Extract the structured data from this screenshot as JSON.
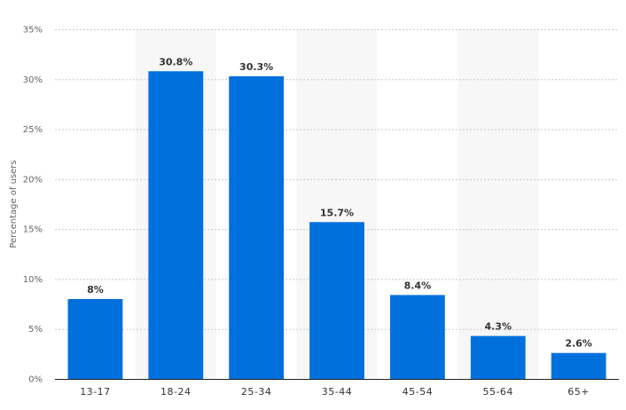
{
  "chart_data": {
    "type": "bar",
    "categories": [
      "13-17",
      "18-24",
      "25-34",
      "35-44",
      "45-54",
      "55-64",
      "65+"
    ],
    "values": [
      8,
      30.8,
      30.3,
      15.7,
      8.4,
      4.3,
      2.6
    ],
    "data_labels": [
      "8%",
      "30.8%",
      "30.3%",
      "15.7%",
      "8.4%",
      "4.3%",
      "2.6%"
    ],
    "title": "",
    "xlabel": "",
    "ylabel": "Percentage of users",
    "ylim": [
      0,
      35
    ],
    "yticks": [
      0,
      5,
      10,
      15,
      20,
      25,
      30,
      35
    ],
    "ytick_labels": [
      "0%",
      "5%",
      "10%",
      "15%",
      "20%",
      "25%",
      "30%",
      "35%"
    ],
    "grid": true,
    "bar_color": "#0070dd",
    "band_color": "#f7f7f7"
  }
}
